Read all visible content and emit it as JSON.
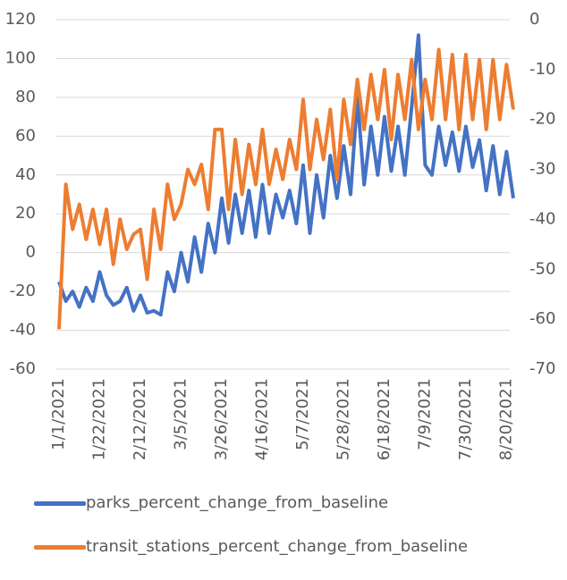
{
  "chart_data": {
    "type": "line",
    "categories": [
      "1/1/2021",
      null,
      null,
      null,
      null,
      null,
      "1/22/2021",
      null,
      null,
      null,
      null,
      null,
      "2/12/2021",
      null,
      null,
      null,
      null,
      null,
      "3/5/2021",
      null,
      null,
      null,
      null,
      null,
      "3/26/2021",
      null,
      null,
      null,
      null,
      null,
      "4/16/2021",
      null,
      null,
      null,
      null,
      null,
      "5/7/2021",
      null,
      null,
      null,
      null,
      null,
      "5/28/2021",
      null,
      null,
      null,
      null,
      null,
      "6/18/2021",
      null,
      null,
      null,
      null,
      null,
      "7/9/2021",
      null,
      null,
      null,
      null,
      null,
      "7/30/2021",
      null,
      null,
      null,
      null,
      null,
      "8/20/2021",
      null
    ],
    "series": [
      {
        "name": "parks_percent_change_from_baseline",
        "color": "#4472c4",
        "values": [
          -15,
          -25,
          -20,
          -28,
          -18,
          -25,
          -10,
          -22,
          -27,
          -25,
          -18,
          -30,
          -22,
          -31,
          -30,
          -32,
          -10,
          -20,
          0,
          -15,
          8,
          -10,
          15,
          0,
          28,
          5,
          30,
          10,
          32,
          8,
          35,
          10,
          30,
          18,
          32,
          15,
          45,
          10,
          40,
          18,
          50,
          28,
          55,
          30,
          80,
          35,
          65,
          40,
          70,
          42,
          65,
          40,
          75,
          112,
          45,
          40,
          65,
          45,
          62,
          42,
          65,
          44,
          58,
          32,
          55,
          30,
          52,
          28
        ]
      },
      {
        "name": "transit_stations_percent_change_from_baseline",
        "color": "#ed7d31",
        "axis": "y2",
        "values": [
          -62,
          -33,
          -42,
          -37,
          -44,
          -38,
          -45,
          -38,
          -49,
          -40,
          -46,
          -43,
          -42,
          -52,
          -38,
          -46,
          -33,
          -40,
          -37,
          -30,
          -33,
          -29,
          -38,
          -22,
          -22,
          -38,
          -24,
          -35,
          -25,
          -33,
          -22,
          -33,
          -26,
          -32,
          -24,
          -30,
          -16,
          -30,
          -20,
          -28,
          -18,
          -32,
          -16,
          -25,
          -12,
          -22,
          -11,
          -20,
          -10,
          -24,
          -11,
          -20,
          -8,
          -22,
          -12,
          -20,
          -6,
          -20,
          -7,
          -22,
          -7,
          -20,
          -8,
          -22,
          -8,
          -20,
          -9,
          -18
        ]
      }
    ],
    "ylim": [
      -60,
      120
    ],
    "yticks": [
      -60,
      -40,
      -20,
      0,
      20,
      40,
      60,
      80,
      100,
      120
    ],
    "y2lim": [
      -70,
      0
    ],
    "y2ticks": [
      -70,
      -60,
      -50,
      -40,
      -30,
      -20,
      -10,
      0
    ],
    "grid": true
  }
}
